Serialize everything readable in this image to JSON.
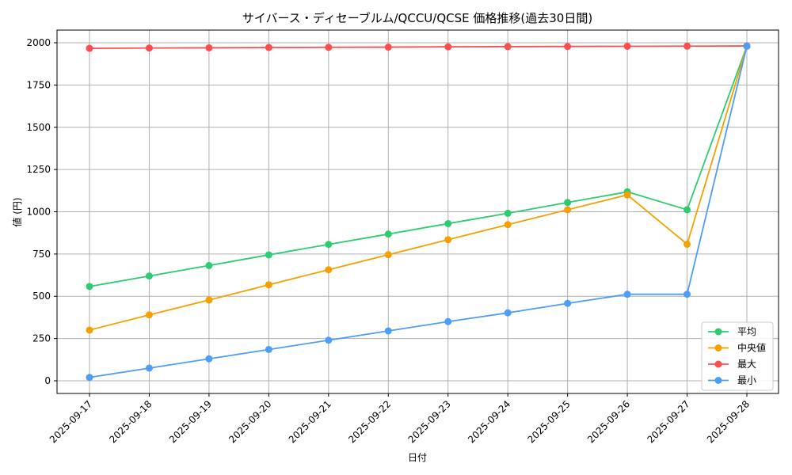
{
  "chart_data": {
    "type": "line",
    "title": "サイバース・ディセーブルム/QCCU/QCSE 価格推移(過去30日間)",
    "xlabel": "日付",
    "ylabel": "値 (円)",
    "categories": [
      "2025-09-17",
      "2025-09-18",
      "2025-09-19",
      "2025-09-20",
      "2025-09-21",
      "2025-09-22",
      "2025-09-23",
      "2025-09-24",
      "2025-09-25",
      "2025-09-26",
      "2025-09-27",
      "2025-09-28"
    ],
    "yticks": [
      "0",
      "250",
      "500",
      "750",
      "1000",
      "1250",
      "1500",
      "1750",
      "2000"
    ],
    "ylim": [
      -75,
      2075
    ],
    "grid": true,
    "legend_position": "bottom-right",
    "series": [
      {
        "name": "平均",
        "color": "#2ecc71",
        "values": [
          558,
          620,
          682,
          745,
          807,
          868,
          930,
          991,
          1055,
          1118,
          1012,
          1980
        ]
      },
      {
        "name": "中央値",
        "color": "#f5a000",
        "values": [
          300,
          390,
          478,
          568,
          657,
          746,
          835,
          924,
          1012,
          1100,
          808,
          1980
        ]
      },
      {
        "name": "最大",
        "color": "#ff4d4d",
        "values": [
          1967,
          1969,
          1970,
          1972,
          1973,
          1974,
          1976,
          1977,
          1978,
          1979,
          1980,
          1981
        ]
      },
      {
        "name": "最小",
        "color": "#4d9ef7",
        "values": [
          20,
          75,
          130,
          185,
          240,
          295,
          350,
          402,
          458,
          512,
          512,
          1980
        ]
      }
    ]
  }
}
